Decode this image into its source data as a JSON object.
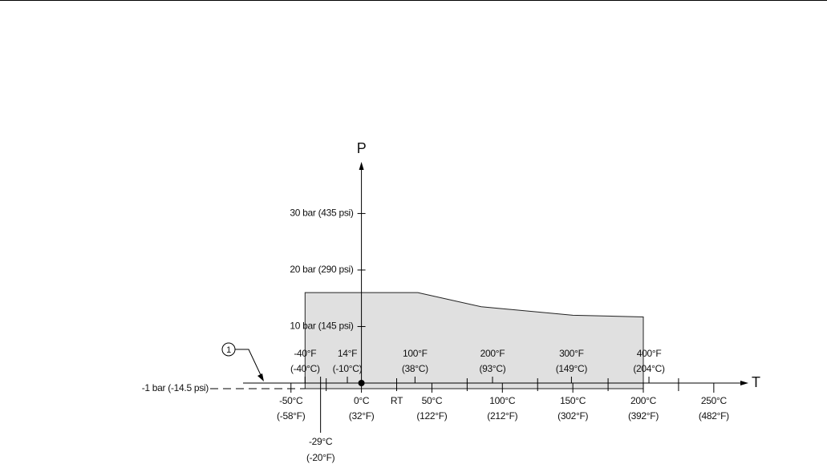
{
  "chart_data": {
    "type": "area",
    "xlabel": "T",
    "ylabel": "P",
    "xlim": [
      -84,
      270
    ],
    "ylim": [
      0,
      38
    ],
    "color": "#e0e0e0",
    "line_color": "#222222",
    "series": [
      {
        "x": [
          -40,
          40,
          85,
          150,
          200
        ],
        "values": [
          16,
          16,
          13.5,
          12,
          11.7
        ]
      }
    ],
    "baseline": {
      "value": -1,
      "label": "-1 bar (-14.5 psi)"
    },
    "yticks": [
      {
        "value": 10,
        "label": "10 bar (145 psi)"
      },
      {
        "value": 20,
        "label": "20 bar (290 psi)"
      },
      {
        "value": 30,
        "label": "30 bar (435 psi)"
      }
    ],
    "xticks": [
      {
        "value": -50,
        "label": [
          "-50°C",
          "(-58°F)"
        ]
      },
      {
        "value": 0,
        "label": [
          "0°C",
          "(32°F)"
        ]
      },
      {
        "value": 50,
        "label": [
          "50°C",
          "(122°F)"
        ]
      },
      {
        "value": 100,
        "label": [
          "100°C",
          "(212°F)"
        ]
      },
      {
        "value": 150,
        "label": [
          "150°C",
          "(302°F)"
        ]
      },
      {
        "value": 200,
        "label": [
          "200°C",
          "(392°F)"
        ]
      },
      {
        "value": 250,
        "label": [
          "250°C",
          "(482°F)"
        ]
      }
    ],
    "fahrenheit_ticks": [
      {
        "value": -40,
        "label": [
          "-40°F",
          "(-40°C)"
        ]
      },
      {
        "value": -10,
        "label": [
          "14°F",
          "(-10°C)"
        ]
      },
      {
        "value": 38,
        "label": [
          "100°F",
          "(38°C)"
        ]
      },
      {
        "value": 93,
        "label": [
          "200°F",
          "(93°C)"
        ]
      },
      {
        "value": 149,
        "label": [
          "300°F",
          "(149°C)"
        ]
      },
      {
        "value": 204,
        "label": [
          "400°F",
          "(204°C)"
        ]
      }
    ],
    "minor_xticks": [
      -25,
      75,
      125,
      175,
      225
    ],
    "rt_tick": {
      "value": 25,
      "label": "RT"
    },
    "low_tick": {
      "value": -29,
      "label": [
        "-29°C",
        "(-20°F)"
      ]
    },
    "callout": "1"
  }
}
